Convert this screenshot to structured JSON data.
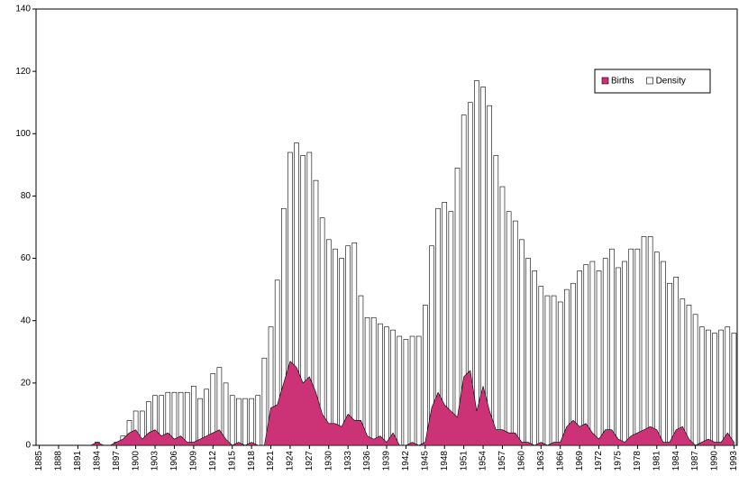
{
  "chart_data": {
    "type": "bar",
    "categories": [
      "1885",
      null,
      null,
      "1888",
      null,
      null,
      "1891",
      null,
      null,
      "1894",
      null,
      null,
      "1897",
      null,
      null,
      "1900",
      null,
      null,
      "1903",
      null,
      null,
      "1906",
      null,
      null,
      "1909",
      null,
      null,
      "1912",
      null,
      null,
      "1915",
      null,
      null,
      "1918",
      null,
      null,
      "1921",
      null,
      null,
      "1924",
      null,
      null,
      "1927",
      null,
      null,
      "1930",
      null,
      null,
      "1933",
      null,
      null,
      "1936",
      null,
      null,
      "1939",
      null,
      null,
      "1942",
      null,
      null,
      "1945",
      null,
      null,
      "1948",
      null,
      null,
      "1951",
      null,
      null,
      "1954",
      null,
      null,
      "1957",
      null,
      null,
      "1960",
      null,
      null,
      "1963",
      null,
      null,
      "1966",
      null,
      null,
      "1969",
      null,
      null,
      "1972",
      null,
      null,
      "1975",
      null,
      null,
      "1978",
      null,
      null,
      "1981",
      null,
      null,
      "1984",
      null,
      null,
      "1987",
      null,
      null,
      "1990",
      null,
      null,
      "1993"
    ],
    "series": [
      {
        "name": "Births",
        "type": "area",
        "color": "#cc3377",
        "values": [
          0,
          0,
          0,
          0,
          0,
          0,
          0,
          0,
          0,
          1,
          0,
          0,
          1,
          2,
          4,
          5,
          2,
          4,
          5,
          3,
          4,
          2,
          3,
          1,
          1,
          2,
          3,
          4,
          5,
          2,
          0,
          1,
          0,
          1,
          0,
          0,
          12,
          13,
          20,
          27,
          25,
          20,
          22,
          17,
          10,
          7,
          7,
          6,
          10,
          8,
          8,
          3,
          2,
          3,
          1,
          4,
          0,
          0,
          1,
          0,
          1,
          12,
          17,
          13,
          11,
          9,
          22,
          24,
          11,
          19,
          11,
          5,
          5,
          4,
          4,
          1,
          1,
          0,
          1,
          0,
          1,
          1,
          6,
          8,
          6,
          7,
          4,
          2,
          5,
          5,
          2,
          1,
          3,
          4,
          5,
          6,
          5,
          1,
          1,
          5,
          6,
          2,
          0,
          1,
          2,
          1,
          1,
          4,
          1
        ]
      },
      {
        "name": "Density",
        "type": "bar",
        "color": "#ffffff",
        "values": [
          0,
          0,
          0,
          0,
          0,
          0,
          0,
          0,
          0,
          1,
          0,
          0,
          1,
          3,
          8,
          11,
          11,
          14,
          16,
          16,
          17,
          17,
          17,
          17,
          19,
          15,
          18,
          23,
          25,
          20,
          16,
          15,
          15,
          15,
          16,
          28,
          38,
          53,
          76,
          94,
          97,
          93,
          94,
          85,
          73,
          66,
          63,
          60,
          64,
          65,
          48,
          41,
          41,
          39,
          38,
          37,
          35,
          34,
          35,
          35,
          45,
          64,
          76,
          78,
          75,
          89,
          106,
          110,
          117,
          115,
          109,
          93,
          83,
          75,
          72,
          66,
          60,
          56,
          51,
          48,
          48,
          46,
          50,
          52,
          56,
          58,
          59,
          56,
          60,
          63,
          57,
          59,
          63,
          63,
          67,
          67,
          62,
          59,
          52,
          54,
          47,
          45,
          42,
          38,
          37,
          36,
          37,
          38,
          36
        ]
      }
    ],
    "ylim": [
      0,
      140
    ],
    "yticks": [
      0,
      20,
      40,
      60,
      80,
      100,
      120,
      140
    ],
    "legend": "upper-right"
  }
}
